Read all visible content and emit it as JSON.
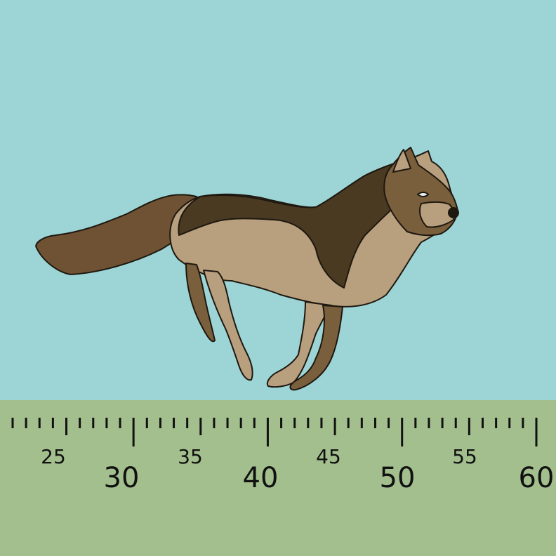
{
  "scene": {
    "sky_color": "#9dd5d6",
    "ground_color": "#a3bf8d",
    "character": "running-wolf",
    "wolf_colors": {
      "dark": "#4b3a22",
      "mid": "#7a5f3c",
      "light": "#b89f7e",
      "outline": "#1e1810"
    }
  },
  "ruler": {
    "min": 21,
    "max": 60,
    "major_labels": [
      "30",
      "40",
      "50",
      "60"
    ],
    "minor_labels": [
      "25",
      "35",
      "45",
      "55"
    ]
  }
}
